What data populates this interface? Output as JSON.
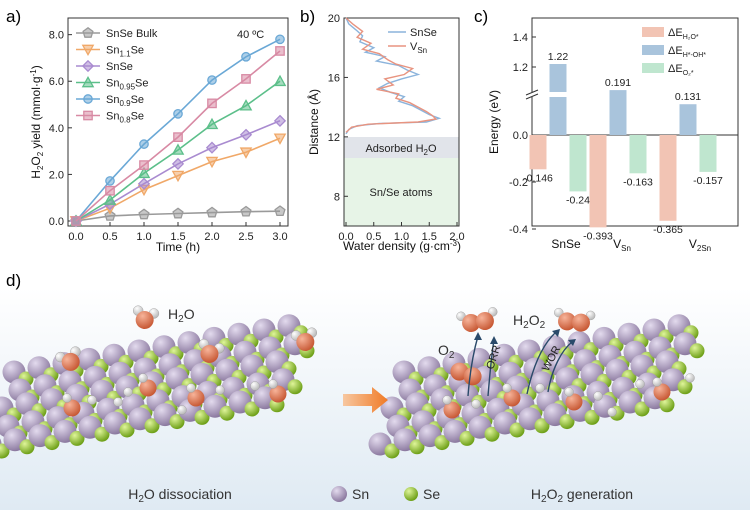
{
  "panels": {
    "a": "a)",
    "b": "b)",
    "c": "c)",
    "d": "d)"
  },
  "chart_data": [
    {
      "type": "line",
      "annotation": "40 ºC",
      "xlabel": "Time (h)",
      "ylabel": "H2O2 yield (mmol·g-1)",
      "xlim": [
        0,
        3
      ],
      "ylim": [
        0,
        8.5
      ],
      "xticks": [
        "0.0",
        "0.5",
        "1.0",
        "1.5",
        "2.0",
        "2.5",
        "3.0"
      ],
      "yticks": [
        "0.0",
        "2.0",
        "4.0",
        "6.0",
        "8.0"
      ],
      "x": [
        0,
        0.5,
        1,
        1.5,
        2,
        2.5,
        3
      ],
      "series": [
        {
          "name": "SnSe Bulk",
          "color": "#9a9a9a",
          "marker": "pentagon",
          "values": [
            0,
            0.22,
            0.28,
            0.32,
            0.36,
            0.4,
            0.42
          ]
        },
        {
          "name": "Sn1.1Se",
          "color": "#f0a868",
          "marker": "triangle-down",
          "values": [
            0,
            0.55,
            1.35,
            1.95,
            2.55,
            2.95,
            3.55
          ]
        },
        {
          "name": "SnSe",
          "color": "#a98bd0",
          "marker": "diamond",
          "values": [
            0,
            0.72,
            1.6,
            2.45,
            3.15,
            3.7,
            4.3
          ]
        },
        {
          "name": "Sn0.95Se",
          "color": "#5cbf8a",
          "marker": "triangle-up",
          "values": [
            0,
            0.9,
            2.05,
            3.05,
            4.15,
            4.95,
            6.0
          ]
        },
        {
          "name": "Sn0.9Se",
          "color": "#6aa8d6",
          "marker": "circle",
          "values": [
            0,
            1.72,
            3.3,
            4.6,
            6.05,
            7.05,
            7.8
          ]
        },
        {
          "name": "Sn0.8Se",
          "color": "#d88aa4",
          "marker": "square",
          "values": [
            0,
            1.3,
            2.4,
            3.6,
            5.05,
            6.1,
            7.3
          ]
        }
      ]
    },
    {
      "type": "line",
      "xlabel": "Water density (g·cm-3)",
      "ylabel": "Distance (Å)",
      "xlim": [
        0,
        2
      ],
      "ylim": [
        6,
        20
      ],
      "xticks": [
        "0.0",
        "0.5",
        "1.0",
        "1.5",
        "2.0"
      ],
      "yticks": [
        "8",
        "12",
        "16",
        "20"
      ],
      "regions": [
        {
          "label": "Adsorbed H2O",
          "from": 10.7,
          "to": 12.2,
          "color": "#e1e4ea"
        },
        {
          "label": "Sn/Se atoms",
          "from": 6,
          "to": 10.7,
          "color": "#e7f4e7"
        }
      ],
      "series": [
        {
          "name": "SnSe",
          "color": "#8cb4dc",
          "points": [
            [
              0,
              20
            ],
            [
              0.05,
              19.6
            ],
            [
              0.18,
              19.2
            ],
            [
              0.3,
              18.8
            ],
            [
              0.25,
              18.4
            ],
            [
              0.5,
              18
            ],
            [
              0.35,
              17.7
            ],
            [
              0.7,
              17.4
            ],
            [
              0.55,
              17.1
            ],
            [
              0.95,
              16.8
            ],
            [
              1.1,
              16.5
            ],
            [
              1.3,
              16.2
            ],
            [
              1.0,
              15.9
            ],
            [
              0.75,
              15.6
            ],
            [
              0.6,
              15.3
            ],
            [
              0.8,
              15.0
            ],
            [
              1.05,
              14.7
            ],
            [
              0.95,
              14.4
            ],
            [
              1.2,
              14.1
            ],
            [
              1.35,
              13.8
            ],
            [
              1.5,
              13.5
            ],
            [
              1.68,
              13.25
            ],
            [
              1.45,
              13.0
            ],
            [
              0.6,
              12.9
            ],
            [
              0.2,
              12.75
            ],
            [
              0.05,
              12.5
            ],
            [
              0,
              12.2
            ]
          ]
        },
        {
          "name": "VSn",
          "color": "#e89480",
          "points": [
            [
              0,
              20
            ],
            [
              0.12,
              19.6
            ],
            [
              0.3,
              19.1
            ],
            [
              0.2,
              18.7
            ],
            [
              0.45,
              18.3
            ],
            [
              0.3,
              17.9
            ],
            [
              0.6,
              17.6
            ],
            [
              0.75,
              17.2
            ],
            [
              0.9,
              16.9
            ],
            [
              1.2,
              16.6
            ],
            [
              1.05,
              16.2
            ],
            [
              0.7,
              15.9
            ],
            [
              0.85,
              15.5
            ],
            [
              0.55,
              15.2
            ],
            [
              0.95,
              14.9
            ],
            [
              0.9,
              14.6
            ],
            [
              1.15,
              14.3
            ],
            [
              1.3,
              14.0
            ],
            [
              1.45,
              13.7
            ],
            [
              1.55,
              13.45
            ],
            [
              1.62,
              13.2
            ],
            [
              1.3,
              13.0
            ],
            [
              0.4,
              12.85
            ],
            [
              0.1,
              12.65
            ],
            [
              0,
              12.3
            ]
          ]
        }
      ]
    },
    {
      "type": "bar",
      "ylabel": "Energy (eV)",
      "categories": [
        "SnSe",
        "VSn",
        "V2Sn"
      ],
      "yticks_lower": [
        "0.0",
        "-0.2",
        "-0.4"
      ],
      "yticks_upper": [
        "1.2",
        "1.4"
      ],
      "legend": [
        "ΔEH2O*",
        "ΔEH*-OH*",
        "ΔEO2*"
      ],
      "colors": [
        "#f2c4b4",
        "#a9c4dc",
        "#bfe6cf"
      ],
      "series": [
        {
          "name": "ΔEH2O*",
          "values": [
            -0.146,
            -0.393,
            -0.365
          ],
          "labels": [
            "-0.146",
            "-0.393",
            "-0.365"
          ]
        },
        {
          "name": "ΔEH*-OH*",
          "values": [
            1.22,
            0.191,
            0.131
          ],
          "labels": [
            "1.22",
            "0.191",
            "0.131"
          ]
        },
        {
          "name": "ΔEO2*",
          "values": [
            -0.24,
            -0.163,
            -0.157
          ],
          "labels": [
            "-0.24",
            "-0.163",
            "-0.157"
          ]
        }
      ]
    }
  ],
  "scene": {
    "h2o_label": "H2O",
    "o2_label": "O2",
    "h2o2_label": "H2O2",
    "orr_label": "ORR",
    "wor_label": "WOR",
    "left_caption": "H2O dissociation",
    "right_caption": "H2O2 generation",
    "legend_sn": "Sn",
    "legend_se": "Se",
    "colors": {
      "sn": "#a99ab8",
      "se": "#9cd13a",
      "o": "#e0805a",
      "h": "#f2f2f2",
      "arrow": "#f07a26",
      "sky": "#e8f1f8"
    }
  }
}
